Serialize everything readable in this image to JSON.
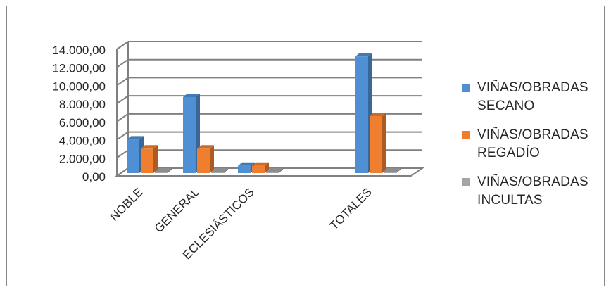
{
  "chart_data": {
    "type": "bar",
    "categories": [
      "NOBLE",
      "GENERAL",
      "ECLESIÁSTICOS",
      "TOTALES"
    ],
    "series": [
      {
        "name": "VIÑAS/OBRADAS SECANO",
        "values": [
          3700,
          8400,
          800,
          12900
        ],
        "color": "#4f8fd3"
      },
      {
        "name": "VIÑAS/OBRADAS REGADÍO",
        "values": [
          2700,
          2700,
          800,
          6300
        ],
        "color": "#ef7f2f"
      },
      {
        "name": "VIÑAS/OBRADAS INCULTAS",
        "values": [
          0,
          0,
          0,
          0
        ],
        "color": "#a6a6a6"
      }
    ],
    "yticks": [
      "0,00",
      "2.000,00",
      "4.000,00",
      "6.000,00",
      "8.000,00",
      "10.000,00",
      "12.000,00",
      "14.000,00"
    ],
    "ylim": [
      0,
      14000
    ],
    "grid": true,
    "legend_position": "right",
    "style": "3d-clustered-column"
  }
}
